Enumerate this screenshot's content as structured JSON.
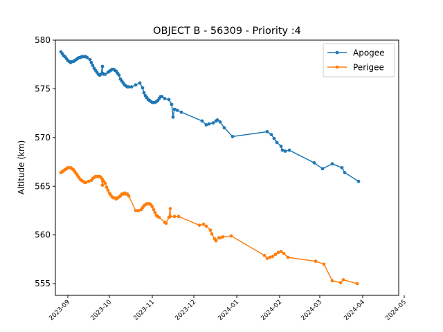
{
  "chart_data": {
    "type": "line",
    "title": "OBJECT B - 56309 - Priority :4",
    "xlabel": "",
    "ylabel": "Altitude (km)",
    "xlim": [
      "2023-08-23",
      "2024-04-27"
    ],
    "ylim": [
      553.8,
      580
    ],
    "x_ticks": [
      "2023-09",
      "2023-10",
      "2023-11",
      "2023-12",
      "2024-01",
      "2024-02",
      "2024-03",
      "2024-04",
      "2024-05"
    ],
    "y_ticks": [
      555,
      560,
      565,
      570,
      575,
      580
    ],
    "grid": false,
    "legend": "top-right",
    "series": [
      {
        "name": "Apogee",
        "color": "#1f77b4",
        "points": [
          [
            "2023-08-27",
            578.8
          ],
          [
            "2023-08-28",
            578.6
          ],
          [
            "2023-08-29",
            578.4
          ],
          [
            "2023-08-30",
            578.3
          ],
          [
            "2023-08-31",
            578.1
          ],
          [
            "2023-09-01",
            577.9
          ],
          [
            "2023-09-02",
            577.8
          ],
          [
            "2023-09-03",
            577.7
          ],
          [
            "2023-09-04",
            577.8
          ],
          [
            "2023-09-05",
            577.8
          ],
          [
            "2023-09-06",
            577.9
          ],
          [
            "2023-09-07",
            578.0
          ],
          [
            "2023-09-08",
            578.1
          ],
          [
            "2023-09-09",
            578.2
          ],
          [
            "2023-09-10",
            578.2
          ],
          [
            "2023-09-11",
            578.3
          ],
          [
            "2023-09-12",
            578.3
          ],
          [
            "2023-09-13",
            578.3
          ],
          [
            "2023-09-14",
            578.3
          ],
          [
            "2023-09-15",
            578.2
          ],
          [
            "2023-09-17",
            578.0
          ],
          [
            "2023-09-18",
            577.7
          ],
          [
            "2023-09-19",
            577.4
          ],
          [
            "2023-09-20",
            577.1
          ],
          [
            "2023-09-21",
            576.9
          ],
          [
            "2023-09-22",
            576.7
          ],
          [
            "2023-09-23",
            576.5
          ],
          [
            "2023-09-24",
            576.4
          ],
          [
            "2023-09-25",
            576.5
          ],
          [
            "2023-09-26",
            577.3
          ],
          [
            "2023-09-26",
            576.6
          ],
          [
            "2023-09-27",
            576.5
          ],
          [
            "2023-09-28",
            576.5
          ],
          [
            "2023-09-30",
            576.7
          ],
          [
            "2023-10-01",
            576.8
          ],
          [
            "2023-10-02",
            576.9
          ],
          [
            "2023-10-03",
            577.0
          ],
          [
            "2023-10-04",
            577.0
          ],
          [
            "2023-10-05",
            576.9
          ],
          [
            "2023-10-06",
            576.8
          ],
          [
            "2023-10-07",
            576.6
          ],
          [
            "2023-10-08",
            576.4
          ],
          [
            "2023-10-09",
            576.0
          ],
          [
            "2023-10-10",
            575.8
          ],
          [
            "2023-10-11",
            575.6
          ],
          [
            "2023-10-12",
            575.4
          ],
          [
            "2023-10-13",
            575.3
          ],
          [
            "2023-10-14",
            575.2
          ],
          [
            "2023-10-15",
            575.2
          ],
          [
            "2023-10-17",
            575.2
          ],
          [
            "2023-10-20",
            575.4
          ],
          [
            "2023-10-23",
            575.6
          ],
          [
            "2023-10-25",
            575.1
          ],
          [
            "2023-10-26",
            574.6
          ],
          [
            "2023-10-27",
            574.3
          ],
          [
            "2023-10-28",
            574.1
          ],
          [
            "2023-10-29",
            573.9
          ],
          [
            "2023-10-30",
            573.8
          ],
          [
            "2023-10-31",
            573.7
          ],
          [
            "2023-11-01",
            573.6
          ],
          [
            "2023-11-02",
            573.6
          ],
          [
            "2023-11-03",
            573.6
          ],
          [
            "2023-11-04",
            573.7
          ],
          [
            "2023-11-05",
            573.8
          ],
          [
            "2023-11-06",
            574.0
          ],
          [
            "2023-11-07",
            574.2
          ],
          [
            "2023-11-08",
            574.2
          ],
          [
            "2023-11-10",
            574.0
          ],
          [
            "2023-11-13",
            573.9
          ],
          [
            "2023-11-15",
            573.4
          ],
          [
            "2023-11-16",
            572.1
          ],
          [
            "2023-11-17",
            572.9
          ],
          [
            "2023-11-19",
            572.8
          ],
          [
            "2023-11-22",
            572.6
          ],
          [
            "2023-12-07",
            571.7
          ],
          [
            "2023-12-10",
            571.3
          ],
          [
            "2023-12-12",
            571.4
          ],
          [
            "2023-12-15",
            571.5
          ],
          [
            "2023-12-17",
            571.7
          ],
          [
            "2023-12-18",
            571.8
          ],
          [
            "2023-12-20",
            571.6
          ],
          [
            "2023-12-23",
            571.0
          ],
          [
            "2023-12-29",
            570.1
          ],
          [
            "2024-01-23",
            570.6
          ],
          [
            "2024-01-26",
            570.3
          ],
          [
            "2024-01-28",
            569.9
          ],
          [
            "2024-01-30",
            569.5
          ],
          [
            "2024-02-02",
            569.1
          ],
          [
            "2024-02-03",
            568.7
          ],
          [
            "2024-02-05",
            568.6
          ],
          [
            "2024-02-08",
            568.7
          ],
          [
            "2024-02-26",
            567.4
          ],
          [
            "2024-03-03",
            566.8
          ],
          [
            "2024-03-10",
            567.3
          ],
          [
            "2024-03-17",
            566.9
          ],
          [
            "2024-03-19",
            566.4
          ],
          [
            "2024-03-29",
            565.5
          ]
        ]
      },
      {
        "name": "Perigee",
        "color": "#ff7f0e",
        "points": [
          [
            "2023-08-27",
            566.4
          ],
          [
            "2023-08-28",
            566.5
          ],
          [
            "2023-08-29",
            566.6
          ],
          [
            "2023-08-30",
            566.7
          ],
          [
            "2023-08-31",
            566.8
          ],
          [
            "2023-09-01",
            566.9
          ],
          [
            "2023-09-02",
            566.9
          ],
          [
            "2023-09-03",
            566.9
          ],
          [
            "2023-09-04",
            566.8
          ],
          [
            "2023-09-05",
            566.7
          ],
          [
            "2023-09-06",
            566.5
          ],
          [
            "2023-09-07",
            566.3
          ],
          [
            "2023-09-08",
            566.1
          ],
          [
            "2023-09-09",
            565.9
          ],
          [
            "2023-09-10",
            565.7
          ],
          [
            "2023-09-11",
            565.6
          ],
          [
            "2023-09-12",
            565.5
          ],
          [
            "2023-09-13",
            565.4
          ],
          [
            "2023-09-14",
            565.4
          ],
          [
            "2023-09-16",
            565.5
          ],
          [
            "2023-09-18",
            565.6
          ],
          [
            "2023-09-19",
            565.8
          ],
          [
            "2023-09-20",
            565.9
          ],
          [
            "2023-09-21",
            566.0
          ],
          [
            "2023-09-22",
            566.0
          ],
          [
            "2023-09-23",
            566.0
          ],
          [
            "2023-09-24",
            566.0
          ],
          [
            "2023-09-25",
            565.9
          ],
          [
            "2023-09-26",
            565.1
          ],
          [
            "2023-09-26",
            565.7
          ],
          [
            "2023-09-27",
            565.5
          ],
          [
            "2023-09-28",
            565.3
          ],
          [
            "2023-09-29",
            564.9
          ],
          [
            "2023-09-30",
            564.6
          ],
          [
            "2023-10-01",
            564.3
          ],
          [
            "2023-10-02",
            564.1
          ],
          [
            "2023-10-03",
            563.9
          ],
          [
            "2023-10-04",
            563.8
          ],
          [
            "2023-10-05",
            563.8
          ],
          [
            "2023-10-06",
            563.7
          ],
          [
            "2023-10-07",
            563.8
          ],
          [
            "2023-10-08",
            563.9
          ],
          [
            "2023-10-09",
            564.0
          ],
          [
            "2023-10-10",
            564.2
          ],
          [
            "2023-10-11",
            564.2
          ],
          [
            "2023-10-12",
            564.3
          ],
          [
            "2023-10-13",
            564.2
          ],
          [
            "2023-10-14",
            564.2
          ],
          [
            "2023-10-15",
            564.0
          ],
          [
            "2023-10-20",
            562.5
          ],
          [
            "2023-10-22",
            562.5
          ],
          [
            "2023-10-24",
            562.6
          ],
          [
            "2023-10-25",
            562.8
          ],
          [
            "2023-10-26",
            563.0
          ],
          [
            "2023-10-27",
            563.1
          ],
          [
            "2023-10-28",
            563.2
          ],
          [
            "2023-10-29",
            563.2
          ],
          [
            "2023-10-30",
            563.2
          ],
          [
            "2023-10-31",
            563.1
          ],
          [
            "2023-11-01",
            562.9
          ],
          [
            "2023-11-02",
            562.6
          ],
          [
            "2023-11-03",
            562.3
          ],
          [
            "2023-11-04",
            562.0
          ],
          [
            "2023-11-05",
            561.9
          ],
          [
            "2023-11-06",
            561.8
          ],
          [
            "2023-11-10",
            561.3
          ],
          [
            "2023-11-11",
            561.2
          ],
          [
            "2023-11-13",
            561.8
          ],
          [
            "2023-11-14",
            562.7
          ],
          [
            "2023-11-14",
            561.9
          ],
          [
            "2023-11-17",
            561.9
          ],
          [
            "2023-11-20",
            561.9
          ],
          [
            "2023-12-05",
            561.0
          ],
          [
            "2023-12-08",
            561.1
          ],
          [
            "2023-12-10",
            560.9
          ],
          [
            "2023-12-13",
            560.5
          ],
          [
            "2023-12-14",
            560.1
          ],
          [
            "2023-12-16",
            559.6
          ],
          [
            "2023-12-17",
            559.4
          ],
          [
            "2023-12-19",
            559.7
          ],
          [
            "2023-12-20",
            559.7
          ],
          [
            "2023-12-22",
            559.8
          ],
          [
            "2023-12-28",
            559.9
          ],
          [
            "2024-01-21",
            557.9
          ],
          [
            "2024-01-23",
            557.6
          ],
          [
            "2024-01-25",
            557.7
          ],
          [
            "2024-01-27",
            557.8
          ],
          [
            "2024-01-29",
            558.0
          ],
          [
            "2024-01-31",
            558.2
          ],
          [
            "2024-02-02",
            558.3
          ],
          [
            "2024-02-04",
            558.1
          ],
          [
            "2024-02-07",
            557.7
          ],
          [
            "2024-02-27",
            557.3
          ],
          [
            "2024-03-04",
            557.0
          ],
          [
            "2024-03-10",
            555.3
          ],
          [
            "2024-03-16",
            555.1
          ],
          [
            "2024-03-18",
            555.4
          ],
          [
            "2024-03-28",
            555.0
          ]
        ]
      }
    ]
  }
}
